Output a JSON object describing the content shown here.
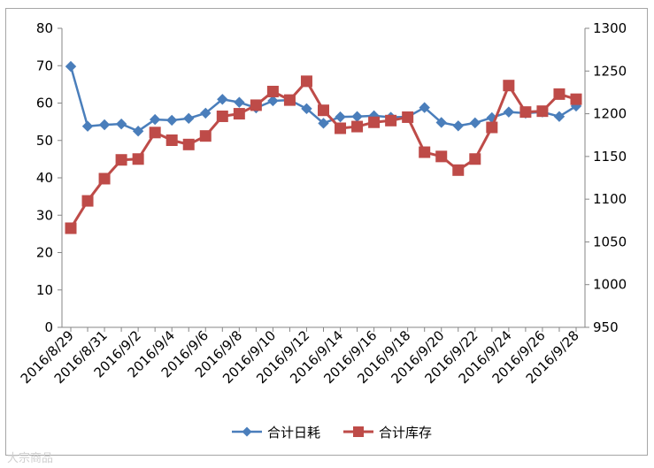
{
  "chart_data": {
    "type": "line",
    "categories": [
      "2016/8/29",
      "2016/8/30",
      "2016/8/31",
      "2016/9/1",
      "2016/9/2",
      "2016/9/3",
      "2016/9/4",
      "2016/9/5",
      "2016/9/6",
      "2016/9/7",
      "2016/9/8",
      "2016/9/9",
      "2016/9/10",
      "2016/9/11",
      "2016/9/12",
      "2016/9/13",
      "2016/9/14",
      "2016/9/15",
      "2016/9/16",
      "2016/9/17",
      "2016/9/18",
      "2016/9/19",
      "2016/9/20",
      "2016/9/21",
      "2016/9/22",
      "2016/9/23",
      "2016/9/24",
      "2016/9/25",
      "2016/9/26",
      "2016/9/27",
      "2016/9/28"
    ],
    "tick_labels": [
      "2016/8/29",
      "2016/8/31",
      "2016/9/2",
      "2016/9/4",
      "2016/9/6",
      "2016/9/8",
      "2016/9/10",
      "2016/9/12",
      "2016/9/14",
      "2016/9/16",
      "2016/9/18",
      "2016/9/20",
      "2016/9/22",
      "2016/9/24",
      "2016/9/26",
      "2016/9/28"
    ],
    "y_left": {
      "min": 0,
      "max": 80,
      "ticks": [
        "0",
        "10",
        "20",
        "30",
        "40",
        "50",
        "60",
        "70",
        "80"
      ]
    },
    "y_right": {
      "min": 950,
      "max": 1300,
      "ticks": [
        "950",
        "1000",
        "1050",
        "1100",
        "1150",
        "1200",
        "1250",
        "1300"
      ]
    },
    "grid": false,
    "legend_position": "bottom",
    "series": [
      {
        "name": "合计日耗",
        "axis": "left",
        "color": "#4a7ebb",
        "marker": "diamond",
        "values": [
          69.8,
          53.8,
          54.2,
          54.4,
          52.5,
          55.6,
          55.4,
          55.9,
          57.3,
          61.0,
          60.2,
          58.7,
          60.6,
          60.8,
          58.5,
          54.6,
          56.3,
          56.4,
          56.6,
          56.2,
          56.3,
          58.8,
          54.8,
          53.9,
          54.7,
          56.1,
          57.6,
          57.3,
          57.6,
          56.4,
          59.2
        ]
      },
      {
        "name": "合计库存",
        "axis": "right",
        "color": "#be4b48",
        "marker": "square",
        "values": [
          1066,
          1098,
          1124,
          1146,
          1147,
          1178,
          1169,
          1164,
          1174,
          1197,
          1200,
          1210,
          1226,
          1216,
          1238,
          1204,
          1183,
          1185,
          1190,
          1192,
          1196,
          1155,
          1150,
          1134,
          1147,
          1184,
          1233,
          1202,
          1203,
          1223,
          1217
        ]
      }
    ]
  },
  "watermark": "大宗商品"
}
